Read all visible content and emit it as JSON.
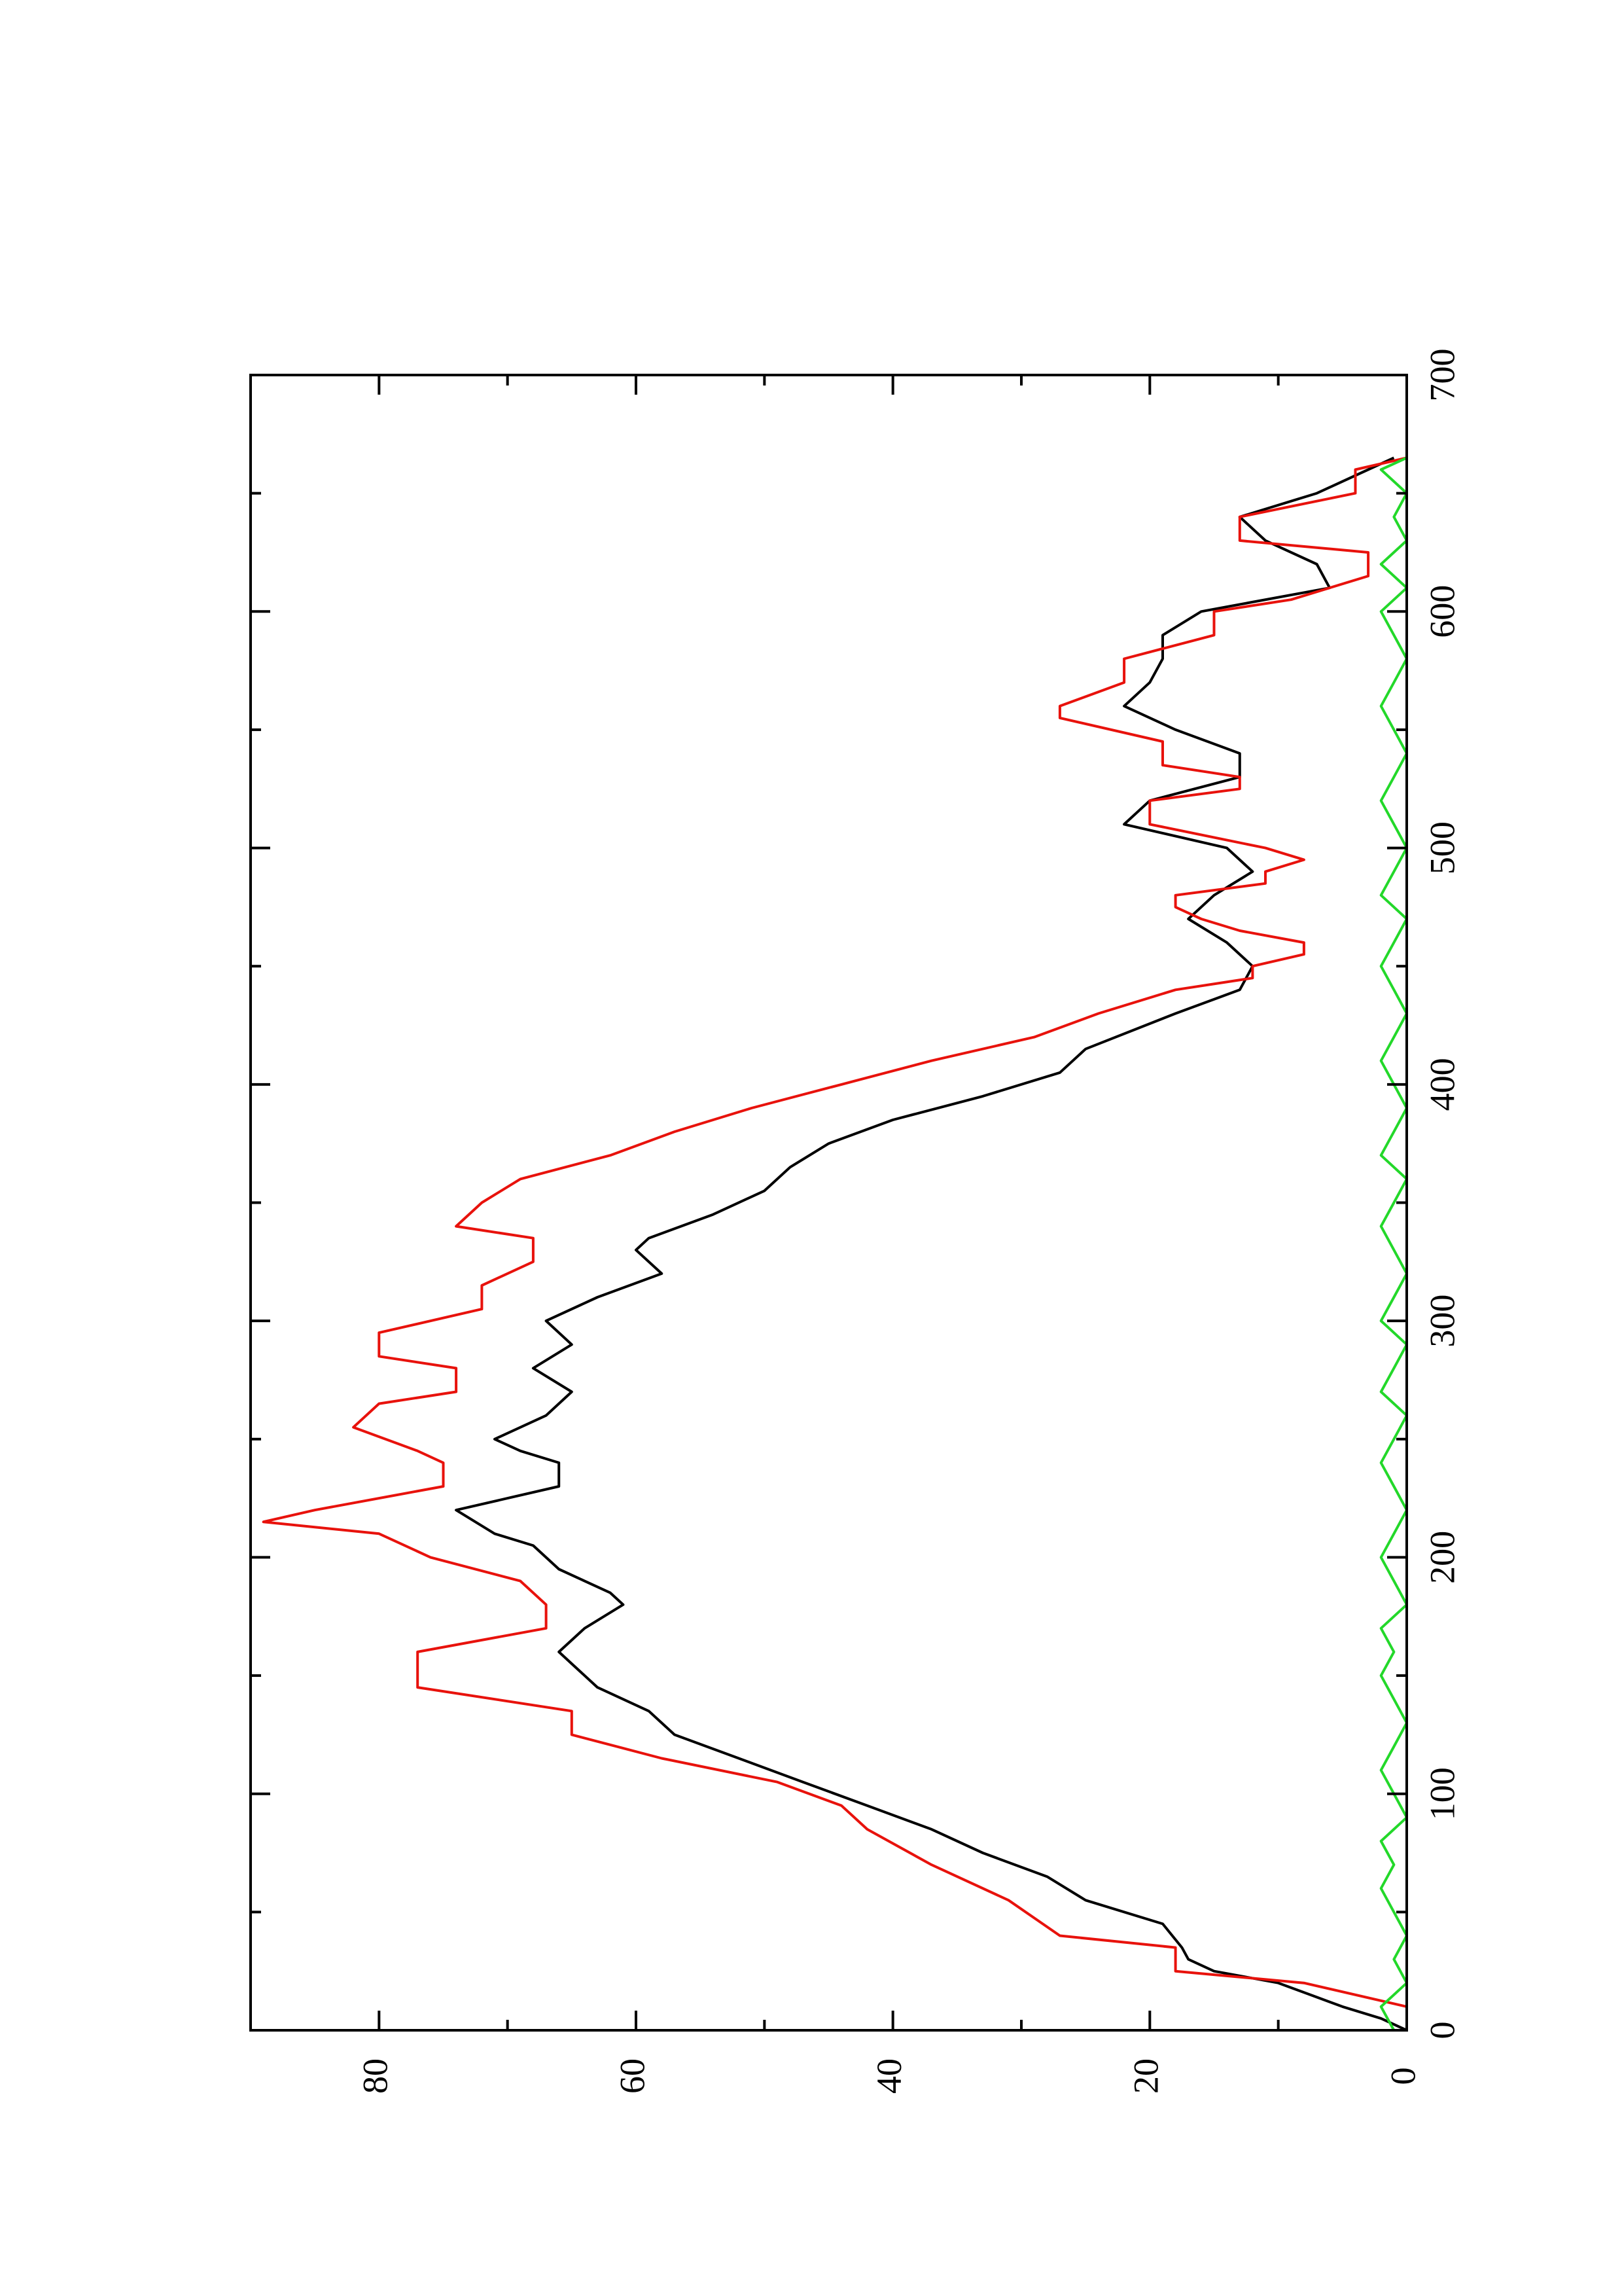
{
  "chart_data": {
    "type": "line",
    "title": "",
    "xlabel": "",
    "ylabel": "",
    "orientation": "rotated 90 degrees counter-clockwise (x increases upward, y increases leftward)",
    "xlim": [
      0,
      700
    ],
    "ylim": [
      0,
      90
    ],
    "x_ticks": [
      0,
      100,
      200,
      300,
      400,
      500,
      600,
      700
    ],
    "x_minor_ticks": [
      50,
      150,
      250,
      350,
      450,
      550,
      650
    ],
    "y_ticks": [
      0,
      20,
      40,
      60,
      80
    ],
    "y_minor_ticks": [
      10,
      30,
      50,
      70
    ],
    "x_tick_labels": [
      "0",
      "100",
      "200",
      "300",
      "400",
      "500",
      "600",
      "700"
    ],
    "y_tick_labels": [
      "0",
      "20",
      "40",
      "60",
      "80"
    ],
    "legend": "none",
    "grid": false,
    "series": [
      {
        "color": "#000000",
        "line_style": "smooth",
        "points": [
          [
            0,
            0
          ],
          [
            5,
            2
          ],
          [
            10,
            5
          ],
          [
            20,
            10
          ],
          [
            25,
            15
          ],
          [
            30,
            17
          ],
          [
            35,
            17.5
          ],
          [
            45,
            19
          ],
          [
            55,
            25
          ],
          [
            65,
            28
          ],
          [
            75,
            33
          ],
          [
            85,
            37
          ],
          [
            95,
            42
          ],
          [
            105,
            47
          ],
          [
            115,
            52
          ],
          [
            125,
            57
          ],
          [
            135,
            59
          ],
          [
            145,
            63
          ],
          [
            155,
            65
          ],
          [
            160,
            66
          ],
          [
            170,
            64
          ],
          [
            180,
            61
          ],
          [
            185,
            62
          ],
          [
            195,
            66
          ],
          [
            205,
            68
          ],
          [
            210,
            71
          ],
          [
            220,
            74
          ],
          [
            230,
            66
          ],
          [
            240,
            66
          ],
          [
            245,
            69
          ],
          [
            250,
            71
          ],
          [
            260,
            67
          ],
          [
            270,
            65
          ],
          [
            280,
            68
          ],
          [
            290,
            65
          ],
          [
            300,
            67
          ],
          [
            310,
            63
          ],
          [
            320,
            58
          ],
          [
            330,
            60
          ],
          [
            335,
            59
          ],
          [
            345,
            54
          ],
          [
            355,
            50
          ],
          [
            365,
            48
          ],
          [
            375,
            45
          ],
          [
            385,
            40
          ],
          [
            395,
            33
          ],
          [
            405,
            27
          ],
          [
            415,
            25
          ],
          [
            430,
            18
          ],
          [
            440,
            13
          ],
          [
            450,
            12
          ],
          [
            460,
            14
          ],
          [
            470,
            17
          ],
          [
            480,
            15
          ],
          [
            490,
            12
          ],
          [
            500,
            14
          ],
          [
            510,
            22
          ],
          [
            520,
            20
          ],
          [
            530,
            13
          ],
          [
            540,
            13
          ],
          [
            550,
            18
          ],
          [
            560,
            22
          ],
          [
            570,
            20
          ],
          [
            580,
            19
          ],
          [
            590,
            19
          ],
          [
            600,
            16
          ],
          [
            610,
            6
          ],
          [
            620,
            7
          ],
          [
            630,
            11
          ],
          [
            640,
            13
          ],
          [
            650,
            7
          ],
          [
            660,
            3
          ],
          [
            665,
            1
          ]
        ]
      },
      {
        "color": "#e8120c",
        "line_style": "step",
        "points": [
          [
            0,
            0
          ],
          [
            10,
            0
          ],
          [
            20,
            8
          ],
          [
            25,
            18
          ],
          [
            35,
            18
          ],
          [
            40,
            27
          ],
          [
            55,
            31
          ],
          [
            70,
            37
          ],
          [
            85,
            42
          ],
          [
            95,
            44
          ],
          [
            105,
            49
          ],
          [
            115,
            58
          ],
          [
            125,
            65
          ],
          [
            135,
            65
          ],
          [
            145,
            77
          ],
          [
            160,
            77
          ],
          [
            170,
            67
          ],
          [
            180,
            67
          ],
          [
            190,
            69
          ],
          [
            200,
            76
          ],
          [
            210,
            80
          ],
          [
            215,
            89
          ],
          [
            220,
            85
          ],
          [
            230,
            75
          ],
          [
            240,
            75
          ],
          [
            245,
            77
          ],
          [
            255,
            82
          ],
          [
            265,
            80
          ],
          [
            270,
            74
          ],
          [
            280,
            74
          ],
          [
            285,
            80
          ],
          [
            295,
            80
          ],
          [
            305,
            72
          ],
          [
            315,
            72
          ],
          [
            325,
            68
          ],
          [
            335,
            68
          ],
          [
            340,
            74
          ],
          [
            350,
            72
          ],
          [
            360,
            69
          ],
          [
            370,
            62
          ],
          [
            380,
            57
          ],
          [
            390,
            51
          ],
          [
            400,
            44
          ],
          [
            410,
            37
          ],
          [
            420,
            29
          ],
          [
            430,
            24
          ],
          [
            440,
            18
          ],
          [
            445,
            12
          ],
          [
            450,
            12
          ],
          [
            455,
            8
          ],
          [
            460,
            8
          ],
          [
            465,
            13
          ],
          [
            470,
            16
          ],
          [
            475,
            18
          ],
          [
            480,
            18
          ],
          [
            485,
            11
          ],
          [
            490,
            11
          ],
          [
            495,
            8
          ],
          [
            500,
            11
          ],
          [
            510,
            20
          ],
          [
            520,
            20
          ],
          [
            525,
            13
          ],
          [
            530,
            13
          ],
          [
            535,
            19
          ],
          [
            545,
            19
          ],
          [
            555,
            27
          ],
          [
            560,
            27
          ],
          [
            570,
            22
          ],
          [
            580,
            22
          ],
          [
            590,
            15
          ],
          [
            600,
            15
          ],
          [
            605,
            9
          ],
          [
            615,
            3
          ],
          [
            625,
            3
          ],
          [
            630,
            13
          ],
          [
            640,
            13
          ],
          [
            650,
            4
          ],
          [
            660,
            4
          ],
          [
            665,
            0
          ]
        ]
      },
      {
        "color": "#23d82a",
        "line_style": "noisy",
        "points": [
          [
            0,
            1
          ],
          [
            10,
            2
          ],
          [
            20,
            0
          ],
          [
            30,
            1
          ],
          [
            40,
            0
          ],
          [
            50,
            1
          ],
          [
            60,
            2
          ],
          [
            70,
            1
          ],
          [
            80,
            2
          ],
          [
            90,
            0
          ],
          [
            100,
            1
          ],
          [
            110,
            2
          ],
          [
            120,
            1
          ],
          [
            130,
            0
          ],
          [
            140,
            1
          ],
          [
            150,
            2
          ],
          [
            160,
            1
          ],
          [
            170,
            2
          ],
          [
            180,
            0
          ],
          [
            190,
            1
          ],
          [
            200,
            2
          ],
          [
            210,
            1
          ],
          [
            220,
            0
          ],
          [
            230,
            1
          ],
          [
            240,
            2
          ],
          [
            250,
            1
          ],
          [
            260,
            0
          ],
          [
            270,
            2
          ],
          [
            280,
            1
          ],
          [
            290,
            0
          ],
          [
            300,
            2
          ],
          [
            310,
            1
          ],
          [
            320,
            0
          ],
          [
            330,
            1
          ],
          [
            340,
            2
          ],
          [
            350,
            1
          ],
          [
            360,
            0
          ],
          [
            370,
            2
          ],
          [
            380,
            1
          ],
          [
            390,
            0
          ],
          [
            400,
            1
          ],
          [
            410,
            2
          ],
          [
            420,
            1
          ],
          [
            430,
            0
          ],
          [
            440,
            1
          ],
          [
            450,
            2
          ],
          [
            460,
            1
          ],
          [
            470,
            0
          ],
          [
            480,
            2
          ],
          [
            490,
            1
          ],
          [
            500,
            0
          ],
          [
            510,
            1
          ],
          [
            520,
            2
          ],
          [
            530,
            1
          ],
          [
            540,
            0
          ],
          [
            550,
            1
          ],
          [
            560,
            2
          ],
          [
            570,
            1
          ],
          [
            580,
            0
          ],
          [
            590,
            1
          ],
          [
            600,
            2
          ],
          [
            610,
            0
          ],
          [
            620,
            2
          ],
          [
            630,
            0
          ],
          [
            640,
            1
          ],
          [
            650,
            0
          ],
          [
            660,
            2
          ],
          [
            665,
            0
          ]
        ]
      }
    ]
  }
}
